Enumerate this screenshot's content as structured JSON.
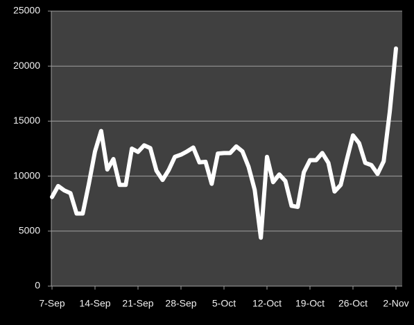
{
  "chart_data": {
    "type": "line",
    "categories": [
      "7-Sep",
      null,
      null,
      null,
      null,
      null,
      null,
      "14-Sep",
      null,
      null,
      null,
      null,
      null,
      null,
      "21-Sep",
      null,
      null,
      null,
      null,
      null,
      null,
      "28-Sep",
      null,
      null,
      null,
      null,
      null,
      null,
      "5-Oct",
      null,
      null,
      null,
      null,
      null,
      null,
      "12-Oct",
      null,
      null,
      null,
      null,
      null,
      null,
      "19-Oct",
      null,
      null,
      null,
      null,
      null,
      null,
      "26-Oct",
      null,
      null,
      null,
      null,
      null,
      null,
      "2-Nov"
    ],
    "series": [
      {
        "color": "#ffffff",
        "values": [
          8100,
          9100,
          8700,
          8450,
          6600,
          6600,
          9300,
          12250,
          14100,
          10600,
          11550,
          9200,
          9200,
          12500,
          12200,
          12800,
          12550,
          10500,
          9650,
          10550,
          11750,
          11950,
          12250,
          12600,
          11250,
          11300,
          9300,
          12050,
          12100,
          12100,
          12700,
          12250,
          10850,
          8750,
          4400,
          11750,
          9450,
          10150,
          9550,
          7300,
          7200,
          10350,
          11450,
          11450,
          12100,
          11200,
          8600,
          9200,
          11500,
          13700,
          13000,
          11200,
          11000,
          10200,
          11350,
          15900,
          21600
        ]
      }
    ],
    "ylim": [
      0,
      25000
    ],
    "yticks": [
      0,
      5000,
      10000,
      15000,
      20000,
      25000
    ],
    "grid": true
  }
}
